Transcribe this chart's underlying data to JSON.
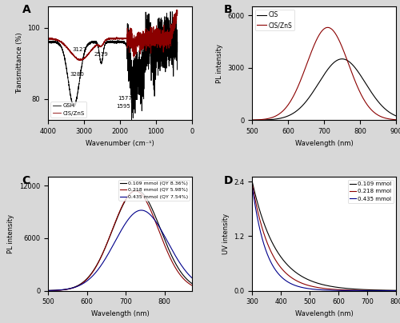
{
  "panel_A": {
    "title": "A",
    "xlabel": "Wavenumber (cm⁻¹)",
    "ylabel": "Transmittance (%)",
    "xlim": [
      4000,
      0
    ],
    "ylim": [
      74,
      106
    ],
    "yticks": [
      80,
      100
    ],
    "legend": [
      "GSH",
      "CIS/ZnS"
    ],
    "colors": [
      "black",
      "#8B0000"
    ]
  },
  "panel_B": {
    "title": "B",
    "xlabel": "Wavelength (nm)",
    "ylabel": "PL intensity",
    "xlim": [
      500,
      900
    ],
    "ylim": [
      0,
      6500
    ],
    "yticks": [
      0,
      3000,
      6000
    ],
    "legend": [
      "CIS",
      "CIS/ZnS"
    ],
    "colors": [
      "black",
      "#8B0000"
    ]
  },
  "panel_C": {
    "title": "C",
    "xlabel": "Wavelength (nm)",
    "ylabel": "PL intensity",
    "xlim": [
      500,
      870
    ],
    "ylim": [
      0,
      13000
    ],
    "yticks": [
      0,
      6000,
      12000
    ],
    "legend": [
      "0.109 mmol (QY 8.36%)",
      "0.218 mmol (QY 5.98%)",
      "0.435 mmol (QY 7.54%)"
    ],
    "colors": [
      "black",
      "#8B0000",
      "#00008B"
    ]
  },
  "panel_D": {
    "title": "D",
    "xlabel": "Wavelength (nm)",
    "ylabel": "UV intensity",
    "xlim": [
      300,
      800
    ],
    "ylim": [
      0,
      2.5
    ],
    "yticks": [
      0.0,
      1.2,
      2.4
    ],
    "legend": [
      "0.109 mmol",
      "0.218 mmol",
      "0.435 mmol"
    ],
    "colors": [
      "black",
      "#8B0000",
      "#00008B"
    ]
  },
  "figure_bg": "#d8d8d8"
}
